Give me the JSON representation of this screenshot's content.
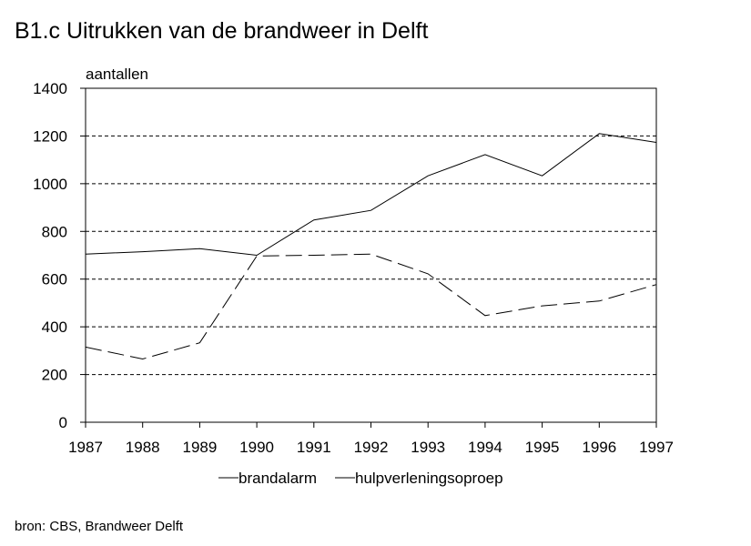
{
  "chart_data": {
    "type": "line",
    "title": "B1.c  Uitrukken van de brandweer in Delft",
    "ylabel": "aantallen",
    "xlabel": "",
    "categories": [
      "1987",
      "1988",
      "1989",
      "1990",
      "1991",
      "1992",
      "1993",
      "1994",
      "1995",
      "1996",
      "1997"
    ],
    "ylim": [
      0,
      1400
    ],
    "yticks": [
      "0",
      "200",
      "400",
      "600",
      "800",
      "1000",
      "1200",
      "1400"
    ],
    "ytick_values": [
      0,
      200,
      400,
      600,
      800,
      1000,
      1200,
      1400
    ],
    "grid": "horizontal-dashed",
    "legend_position": "bottom",
    "series": [
      {
        "name": "brandalarm",
        "style": "solid",
        "values": [
          705,
          715,
          728,
          700,
          848,
          888,
          1033,
          1122,
          1033,
          1210,
          1173
        ]
      },
      {
        "name": "hulpverleningsoproep",
        "style": "dashed",
        "values": [
          315,
          265,
          333,
          697,
          700,
          705,
          622,
          447,
          488,
          508,
          577
        ]
      }
    ],
    "source": "bron: CBS, Brandweer Delft",
    "colors": {
      "line": "#000000",
      "grid": "#000000"
    }
  }
}
